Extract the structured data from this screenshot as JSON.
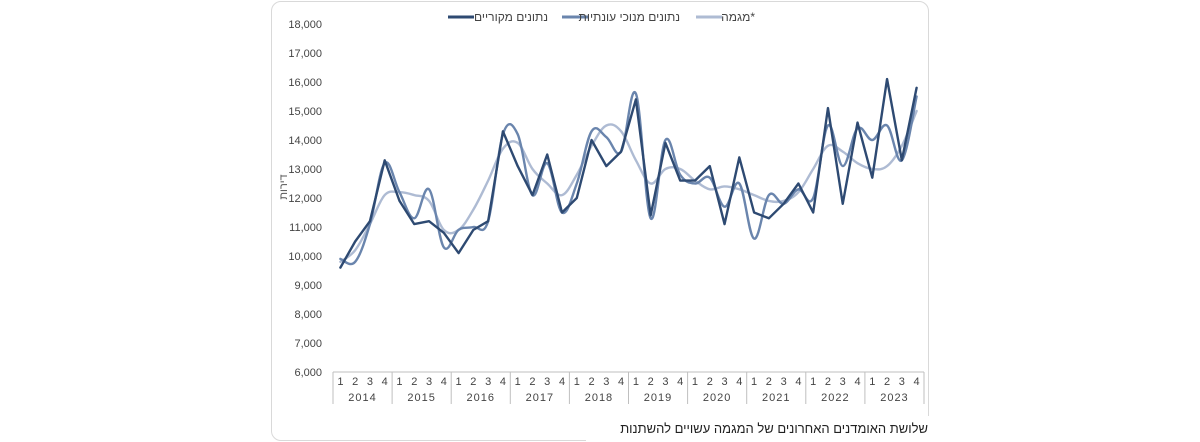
{
  "chart_data": {
    "type": "line",
    "ylabel": "דירות",
    "ylim": [
      6000,
      18000
    ],
    "yticks": [
      6000,
      7000,
      8000,
      9000,
      10000,
      11000,
      12000,
      13000,
      14000,
      15000,
      16000,
      17000,
      18000
    ],
    "ytick_labels": [
      "6,000",
      "7,000",
      "8,000",
      "9,000",
      "10,000",
      "11,000",
      "12,000",
      "13,000",
      "14,000",
      "15,000",
      "16,000",
      "17,000",
      "18,000"
    ],
    "years": [
      "2014",
      "2015",
      "2016",
      "2017",
      "2018",
      "2019",
      "2020",
      "2021",
      "2022",
      "2023"
    ],
    "quarters": [
      "1",
      "2",
      "3",
      "4"
    ],
    "legend_position": "top",
    "series": [
      {
        "name": "נתונים מקוריים",
        "color": "#2e4a72",
        "width": 2.4,
        "values": [
          9600,
          10500,
          11200,
          13300,
          11900,
          11100,
          11200,
          10800,
          10100,
          10900,
          11200,
          14300,
          13100,
          12100,
          13500,
          11500,
          12000,
          14000,
          13100,
          13600,
          15400,
          11400,
          13900,
          12600,
          12600,
          13100,
          11100,
          13400,
          11500,
          11300,
          11800,
          12500,
          11500,
          15100,
          11800,
          14600,
          12700,
          16100,
          13300,
          15800
        ]
      },
      {
        "name": "נתונים מנוכי עונתיות",
        "color": "#6a85ad",
        "width": 2.4,
        "values": [
          9900,
          9800,
          11100,
          13200,
          12200,
          11300,
          12300,
          10300,
          10900,
          11000,
          11200,
          14200,
          14200,
          12100,
          13200,
          11500,
          12500,
          14300,
          14100,
          13600,
          15600,
          11300,
          14000,
          12800,
          12500,
          12700,
          11700,
          12500,
          10600,
          12100,
          11800,
          12300,
          12000,
          14500,
          13100,
          14400,
          14000,
          14500,
          13300,
          15500
        ]
      },
      {
        "name": "מגמה*",
        "color": "#aebbd3",
        "width": 2.4,
        "values": [
          9800,
          10200,
          11100,
          12100,
          12200,
          12100,
          11900,
          10900,
          10900,
          11600,
          12600,
          13700,
          13900,
          13000,
          12500,
          12100,
          12800,
          13800,
          14500,
          14300,
          13300,
          12500,
          13000,
          13000,
          12600,
          12300,
          12400,
          12300,
          12100,
          11900,
          11900,
          12200,
          13000,
          13800,
          13600,
          13200,
          13000,
          13100,
          13800,
          15000
        ]
      }
    ]
  },
  "footnote": "שלושת האומדנים האחרונים של המגמה עשויים להשתנות"
}
